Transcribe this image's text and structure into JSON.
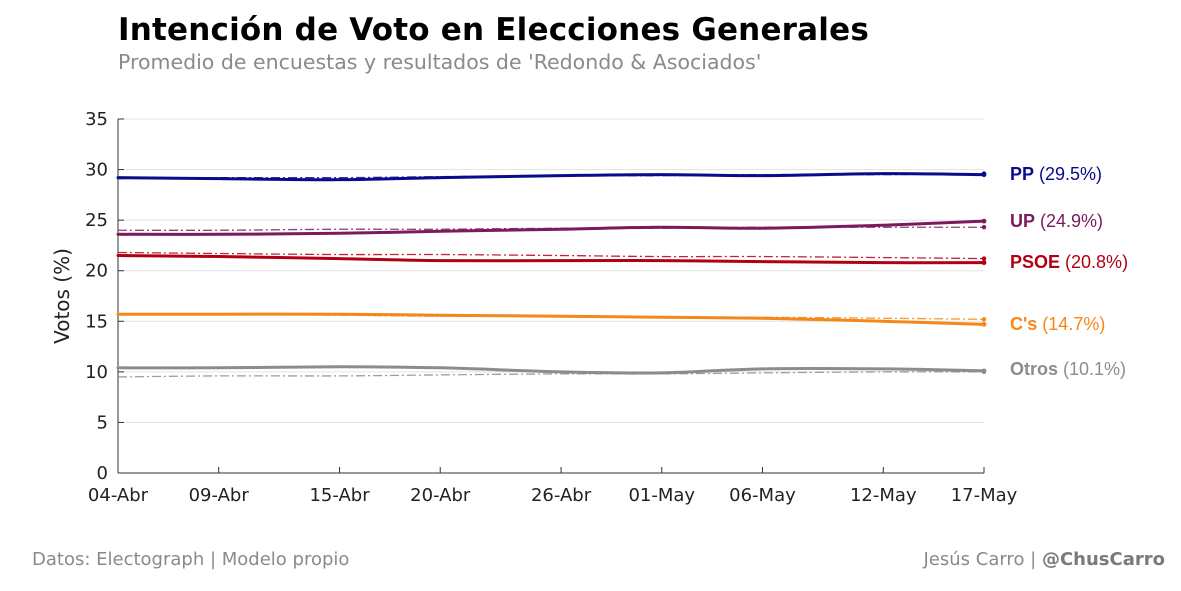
{
  "chart_data": {
    "type": "line",
    "title": "Intención de Voto en Elecciones Generales",
    "subtitle": "Promedio de encuestas y resultados de 'Redondo & Asociados'",
    "ylabel": "Votos (%)",
    "xlabel": "",
    "ylim": [
      0,
      35
    ],
    "yticks": [
      0,
      5,
      10,
      15,
      20,
      25,
      30,
      35
    ],
    "xlim": [
      "2016-04-04",
      "2016-05-17"
    ],
    "xticks": [
      {
        "date": "2016-04-04",
        "label": "04-Abr"
      },
      {
        "date": "2016-04-09",
        "label": "09-Abr"
      },
      {
        "date": "2016-04-15",
        "label": "15-Abr"
      },
      {
        "date": "2016-04-20",
        "label": "20-Abr"
      },
      {
        "date": "2016-04-26",
        "label": "26-Abr"
      },
      {
        "date": "2016-05-01",
        "label": "01-May"
      },
      {
        "date": "2016-05-06",
        "label": "06-May"
      },
      {
        "date": "2016-05-12",
        "label": "12-May"
      },
      {
        "date": "2016-05-17",
        "label": "17-May"
      }
    ],
    "grid": true,
    "series": [
      {
        "name": "PP",
        "final_label": "(29.5%)",
        "color": "#0a0a8c",
        "x": [
          "2016-04-04",
          "2016-04-09",
          "2016-04-15",
          "2016-04-20",
          "2016-04-26",
          "2016-05-01",
          "2016-05-06",
          "2016-05-12",
          "2016-05-17"
        ],
        "values": [
          29.2,
          29.1,
          29.0,
          29.2,
          29.4,
          29.5,
          29.4,
          29.6,
          29.5
        ],
        "trend_values": [
          29.1,
          29.2,
          29.2,
          29.3,
          29.4,
          29.4,
          29.5,
          29.5,
          29.6
        ]
      },
      {
        "name": "UP",
        "final_label": "(24.9%)",
        "color": "#7b1b5c",
        "x": [
          "2016-04-04",
          "2016-04-09",
          "2016-04-15",
          "2016-04-20",
          "2016-04-26",
          "2016-05-01",
          "2016-05-06",
          "2016-05-12",
          "2016-05-17"
        ],
        "values": [
          23.6,
          23.6,
          23.7,
          23.9,
          24.1,
          24.3,
          24.2,
          24.5,
          24.9
        ],
        "trend_values": [
          24.0,
          24.0,
          24.1,
          24.1,
          24.2,
          24.2,
          24.3,
          24.3,
          24.3
        ]
      },
      {
        "name": "PSOE",
        "final_label": "(20.8%)",
        "color": "#b00012",
        "x": [
          "2016-04-04",
          "2016-04-09",
          "2016-04-15",
          "2016-04-20",
          "2016-04-26",
          "2016-05-01",
          "2016-05-06",
          "2016-05-12",
          "2016-05-17"
        ],
        "values": [
          21.5,
          21.4,
          21.2,
          21.0,
          21.0,
          21.0,
          20.9,
          20.8,
          20.8
        ],
        "trend_values": [
          21.8,
          21.7,
          21.6,
          21.6,
          21.5,
          21.4,
          21.4,
          21.3,
          21.2
        ]
      },
      {
        "name": "C's",
        "final_label": "(14.7%)",
        "color": "#f58718",
        "x": [
          "2016-04-04",
          "2016-04-09",
          "2016-04-15",
          "2016-04-20",
          "2016-04-26",
          "2016-05-01",
          "2016-05-06",
          "2016-05-12",
          "2016-05-17"
        ],
        "values": [
          15.7,
          15.7,
          15.7,
          15.6,
          15.5,
          15.4,
          15.3,
          15.0,
          14.7
        ],
        "trend_values": [
          15.7,
          15.7,
          15.6,
          15.5,
          15.5,
          15.4,
          15.4,
          15.3,
          15.2
        ]
      },
      {
        "name": "Otros",
        "final_label": "(10.1%)",
        "color": "#8c8c8c",
        "x": [
          "2016-04-04",
          "2016-04-09",
          "2016-04-15",
          "2016-04-20",
          "2016-04-26",
          "2016-05-01",
          "2016-05-06",
          "2016-05-12",
          "2016-05-17"
        ],
        "values": [
          10.4,
          10.4,
          10.5,
          10.4,
          10.0,
          9.9,
          10.3,
          10.3,
          10.1
        ],
        "trend_values": [
          9.5,
          9.6,
          9.6,
          9.7,
          9.8,
          9.8,
          9.9,
          10.0,
          10.0
        ]
      }
    ]
  },
  "footer": {
    "source": "Datos: Electograph | Modelo propio",
    "author": "Jesús Carro | ",
    "handle": "@ChusCarro"
  }
}
